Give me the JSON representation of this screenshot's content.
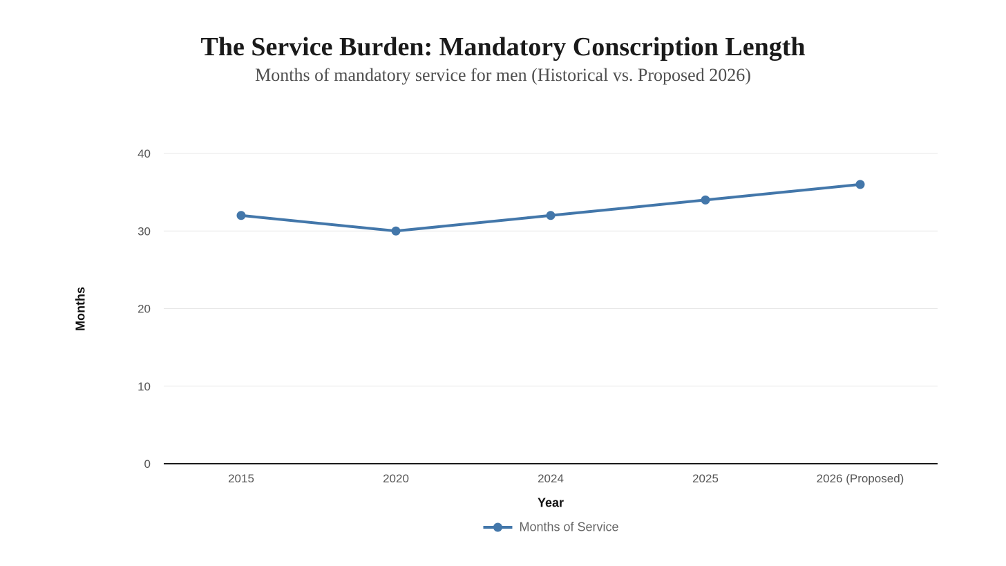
{
  "header": {
    "title": "The Service Burden: Mandatory Conscription Length",
    "subtitle": "Months of mandatory service for men (Historical vs. Proposed 2026)"
  },
  "chart_data": {
    "type": "line",
    "title": "The Service Burden: Mandatory Conscription Length",
    "subtitle": "Months of mandatory service for men (Historical vs. Proposed 2026)",
    "categories": [
      "2015",
      "2020",
      "2024",
      "2025",
      "2026 (Proposed)"
    ],
    "series": [
      {
        "name": "Months of Service",
        "values": [
          32,
          30,
          32,
          34,
          36
        ]
      }
    ],
    "xlabel": "Year",
    "ylabel": "Months",
    "yticks": [
      0,
      10,
      20,
      30,
      40
    ],
    "ylim": [
      0,
      40
    ],
    "grid": true,
    "legend_position": "bottom",
    "colors": {
      "line": "#4377aa",
      "marker": "#4377aa",
      "grid": "#e7e7e7",
      "axis": "#1a1a1a",
      "tick_label": "#565656",
      "title": "#1a1a1a",
      "subtitle": "#4f4f4f",
      "legend_text": "#666666",
      "background": "#ffffff"
    }
  }
}
